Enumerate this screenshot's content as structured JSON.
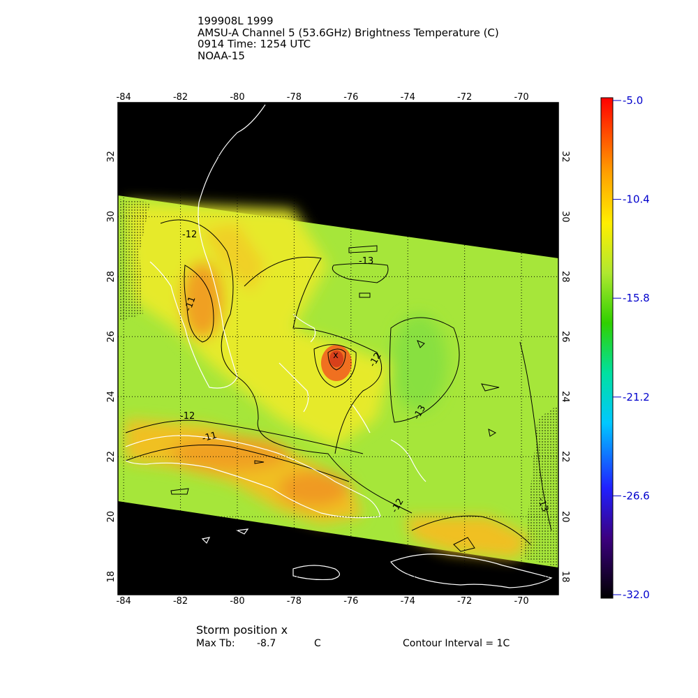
{
  "header": {
    "line1": "199908L 1999",
    "line2": "AMSU-A Channel 5 (53.6GHz) Brightness Temperature (C)",
    "line3": "0914 Time: 1254 UTC",
    "line4": "NOAA-15"
  },
  "map": {
    "lon_range": [
      -84.2,
      -68.7
    ],
    "lat_range": [
      17.4,
      33.8
    ],
    "lon_ticks": [
      "-84",
      "-82",
      "-80",
      "-78",
      "-76",
      "-74",
      "-72",
      "-70"
    ],
    "lat_ticks": [
      "32",
      "30",
      "28",
      "26",
      "24",
      "22",
      "20",
      "18"
    ],
    "contour_labels": [
      "-12",
      "-11",
      "-13",
      "-12",
      "-12",
      "-11",
      "-13",
      "-12",
      "-13"
    ],
    "colors": {
      "background": "#ffffff",
      "nodata": "#000000",
      "field_base": "#a6e63a",
      "warm": "#ff8a1a",
      "coast": "#ffffff",
      "grid": "#000000"
    }
  },
  "colorbar": {
    "ticks": [
      "-5.0",
      "-10.4",
      "-15.8",
      "-21.2",
      "-26.6",
      "-32.0"
    ],
    "min": -32.0,
    "max": -5.0
  },
  "footer": {
    "storm_position": "Storm position x",
    "max_tb_label": "Max Tb:",
    "max_tb_value": "-8.7",
    "max_tb_unit": "C",
    "contour_interval": "Contour Interval = 1C"
  }
}
